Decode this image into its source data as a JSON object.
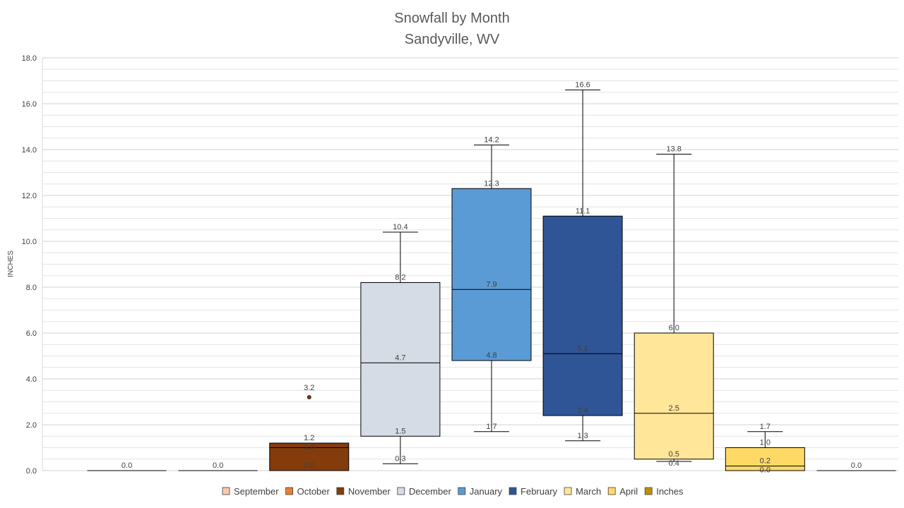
{
  "chart_data": {
    "type": "boxplot",
    "title": "Snowfall by Month",
    "subtitle": "Sandyville, WV",
    "xlabel": "",
    "ylabel": "INCHES",
    "ylim": [
      0,
      18
    ],
    "yticks": [
      "0.0",
      "2.0",
      "4.0",
      "6.0",
      "8.0",
      "10.0",
      "12.0",
      "14.0",
      "16.0",
      "18.0"
    ],
    "grid": true,
    "legend_position": "bottom",
    "series": [
      {
        "name": "September",
        "color": "#F8CBAD",
        "min": 0.0,
        "q1": 0.0,
        "median": 0.0,
        "q3": 0.0,
        "max": 0.0,
        "outliers": []
      },
      {
        "name": "October",
        "color": "#ED7D31",
        "min": 0.0,
        "q1": 0.0,
        "median": 0.0,
        "q3": 0.0,
        "max": 0.0,
        "outliers": []
      },
      {
        "name": "November",
        "color": "#843C0C",
        "min": 0.0,
        "q1": 0.0,
        "median": 1.0,
        "q3": 1.2,
        "max": 1.2,
        "outliers": [
          3.2
        ]
      },
      {
        "name": "December",
        "color": "#D6DCE5",
        "min": 0.3,
        "q1": 1.5,
        "median": 4.7,
        "q3": 8.2,
        "max": 10.4,
        "outliers": []
      },
      {
        "name": "January",
        "color": "#5B9BD5",
        "min": 1.7,
        "q1": 4.8,
        "median": 7.9,
        "q3": 12.3,
        "max": 14.2,
        "outliers": []
      },
      {
        "name": "February",
        "color": "#2F5597",
        "min": 1.3,
        "q1": 2.4,
        "median": 5.1,
        "q3": 11.1,
        "max": 16.6,
        "outliers": []
      },
      {
        "name": "March",
        "color": "#FFE699",
        "min": 0.4,
        "q1": 0.5,
        "median": 2.5,
        "q3": 6.0,
        "max": 13.8,
        "outliers": []
      },
      {
        "name": "April",
        "color": "#FFD966",
        "min": 0.0,
        "q1": 0.0,
        "median": 0.2,
        "q3": 1.0,
        "max": 1.7,
        "outliers": []
      },
      {
        "name": "Inches",
        "color": "#BF9000",
        "min": 0.0,
        "q1": 0.0,
        "median": 0.0,
        "q3": 0.0,
        "max": 0.0,
        "outliers": []
      }
    ]
  }
}
